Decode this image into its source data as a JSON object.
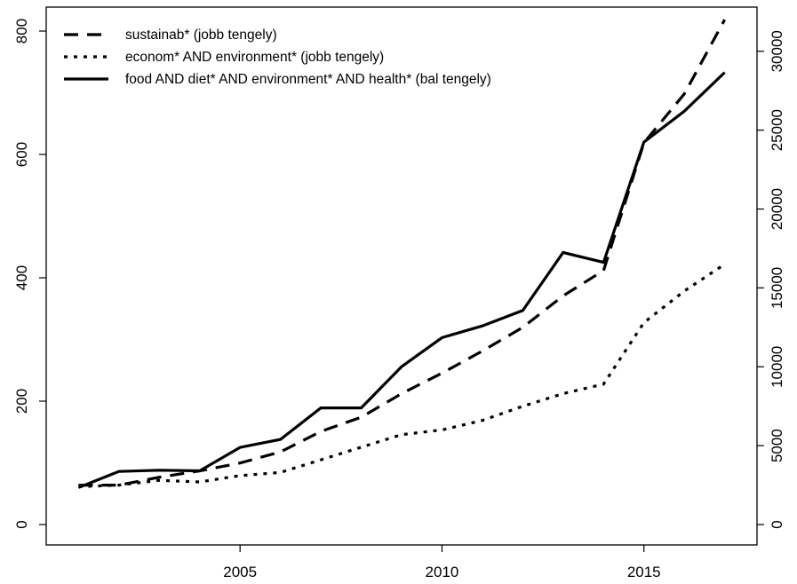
{
  "chart_data": {
    "type": "line",
    "x": [
      2001,
      2002,
      2003,
      2004,
      2005,
      2006,
      2007,
      2008,
      2009,
      2010,
      2011,
      2012,
      2013,
      2014,
      2015,
      2016,
      2017
    ],
    "xlim": [
      2000.2,
      2017.8
    ],
    "x_ticks": [
      "2005",
      "2010",
      "2015"
    ],
    "ylim_left": [
      0,
      800
    ],
    "ylim_right": [
      0,
      32800
    ],
    "left_ticks": [
      "0",
      "200",
      "400",
      "600",
      "800"
    ],
    "right_ticks": [
      "0",
      "5000",
      "10000",
      "15000",
      "20000",
      "25000",
      "30000"
    ],
    "grid": false,
    "legend_position": "top-left",
    "series": [
      {
        "name": "sustainab* (jobb tengely)",
        "axis": "right",
        "style": "dashed",
        "color": "#000000",
        "values": [
          2500,
          2500,
          3000,
          3400,
          3900,
          4600,
          5900,
          6800,
          8300,
          9600,
          11000,
          12500,
          14500,
          16100,
          24200,
          27300,
          32000
        ]
      },
      {
        "name": "econom* AND environment* (jobb tengely)",
        "axis": "right",
        "style": "dotted",
        "color": "#000000",
        "values": [
          2400,
          2500,
          2800,
          2700,
          3100,
          3300,
          4100,
          4900,
          5700,
          6000,
          6600,
          7500,
          8300,
          8900,
          12800,
          14800,
          16500
        ]
      },
      {
        "name": "food AND diet* AND environment* AND health* (bal tengely)",
        "axis": "left",
        "style": "solid",
        "color": "#000000",
        "values": [
          60,
          86,
          88,
          87,
          125,
          138,
          189,
          189,
          256,
          303,
          322,
          347,
          441,
          425,
          620,
          670,
          733
        ]
      }
    ]
  }
}
